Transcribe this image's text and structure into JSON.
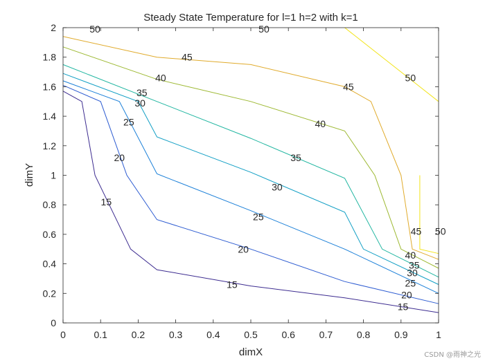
{
  "chart_data": {
    "type": "line",
    "subtype": "contour",
    "title": "Steady State Temperature for l=1 h=2 with k=1",
    "xlabel": "dimX",
    "ylabel": "dimY",
    "xlim": [
      0,
      1
    ],
    "ylim": [
      0,
      2
    ],
    "x_ticks": [
      0,
      0.1,
      0.2,
      0.3,
      0.4,
      0.5,
      0.6,
      0.7,
      0.8,
      0.9,
      1
    ],
    "x_tick_labels": [
      "0",
      "0.1",
      "0.2",
      "0.3",
      "0.4",
      "0.5",
      "0.6",
      "0.7",
      "0.8",
      "0.9",
      "1"
    ],
    "y_ticks": [
      0,
      0.2,
      0.4,
      0.6,
      0.8,
      1,
      1.2,
      1.4,
      1.6,
      1.8,
      2
    ],
    "y_tick_labels": [
      "0",
      "0.2",
      "0.4",
      "0.6",
      "0.8",
      "1",
      "1.2",
      "1.4",
      "1.6",
      "1.8",
      "2"
    ],
    "series": [
      {
        "name": "15",
        "level": 15,
        "color": "#3b2a8f",
        "points": [
          [
            0,
            1.57
          ],
          [
            0.05,
            1.5
          ],
          [
            0.085,
            1.0
          ],
          [
            0.18,
            0.5
          ],
          [
            0.25,
            0.36
          ],
          [
            0.5,
            0.25
          ],
          [
            0.75,
            0.17
          ],
          [
            1,
            0.07
          ]
        ],
        "labels": [
          {
            "text": "15",
            "x": 0.115,
            "y": 0.82
          },
          {
            "text": "15",
            "x": 0.45,
            "y": 0.26
          },
          {
            "text": "15",
            "x": 0.905,
            "y": 0.11
          }
        ]
      },
      {
        "name": "20",
        "level": 20,
        "color": "#2c5bd1",
        "points": [
          [
            0,
            1.61
          ],
          [
            0.1,
            1.5
          ],
          [
            0.17,
            1.0
          ],
          [
            0.25,
            0.7
          ],
          [
            0.5,
            0.5
          ],
          [
            0.75,
            0.28
          ],
          [
            1,
            0.13
          ]
        ],
        "labels": [
          {
            "text": "20",
            "x": 0.15,
            "y": 1.12
          },
          {
            "text": "20",
            "x": 0.48,
            "y": 0.5
          },
          {
            "text": "20",
            "x": 0.915,
            "y": 0.19
          }
        ]
      },
      {
        "name": "25",
        "level": 25,
        "color": "#1a7fd8",
        "points": [
          [
            0,
            1.64
          ],
          [
            0.15,
            1.5
          ],
          [
            0.25,
            1.01
          ],
          [
            0.5,
            0.76
          ],
          [
            0.75,
            0.5
          ],
          [
            1,
            0.2
          ]
        ],
        "labels": [
          {
            "text": "25",
            "x": 0.175,
            "y": 1.36
          },
          {
            "text": "25",
            "x": 0.52,
            "y": 0.72
          },
          {
            "text": "25",
            "x": 0.925,
            "y": 0.27
          }
        ]
      },
      {
        "name": "30",
        "level": 30,
        "color": "#0f9ec4",
        "points": [
          [
            0,
            1.69
          ],
          [
            0.2,
            1.5
          ],
          [
            0.25,
            1.26
          ],
          [
            0.5,
            1.02
          ],
          [
            0.75,
            0.75
          ],
          [
            0.8,
            0.5
          ],
          [
            1,
            0.26
          ]
        ],
        "labels": [
          {
            "text": "30",
            "x": 0.205,
            "y": 1.49
          },
          {
            "text": "30",
            "x": 0.57,
            "y": 0.92
          },
          {
            "text": "30",
            "x": 0.93,
            "y": 0.34
          }
        ]
      },
      {
        "name": "35",
        "level": 35,
        "color": "#1fb5a0",
        "points": [
          [
            0,
            1.75
          ],
          [
            0.25,
            1.5
          ],
          [
            0.5,
            1.25
          ],
          [
            0.75,
            0.98
          ],
          [
            0.85,
            0.5
          ],
          [
            1,
            0.31
          ]
        ],
        "labels": [
          {
            "text": "35",
            "x": 0.21,
            "y": 1.56
          },
          {
            "text": "35",
            "x": 0.62,
            "y": 1.12
          },
          {
            "text": "35",
            "x": 0.935,
            "y": 0.39
          }
        ]
      },
      {
        "name": "40",
        "level": 40,
        "color": "#9cb830",
        "points": [
          [
            0,
            1.87
          ],
          [
            0.25,
            1.65
          ],
          [
            0.5,
            1.5
          ],
          [
            0.75,
            1.3
          ],
          [
            0.83,
            1.0
          ],
          [
            0.9,
            0.5
          ],
          [
            1,
            0.37
          ]
        ],
        "labels": [
          {
            "text": "40",
            "x": 0.26,
            "y": 1.66
          },
          {
            "text": "40",
            "x": 0.685,
            "y": 1.35
          },
          {
            "text": "40",
            "x": 0.925,
            "y": 0.46
          }
        ]
      },
      {
        "name": "45",
        "level": 45,
        "color": "#e0aa2a",
        "points": [
          [
            0,
            1.94
          ],
          [
            0.25,
            1.8
          ],
          [
            0.5,
            1.75
          ],
          [
            0.75,
            1.6
          ],
          [
            0.82,
            1.5
          ],
          [
            0.9,
            1.0
          ],
          [
            0.93,
            0.5
          ],
          [
            1,
            0.43
          ]
        ],
        "labels": [
          {
            "text": "45",
            "x": 0.33,
            "y": 1.8
          },
          {
            "text": "45",
            "x": 0.76,
            "y": 1.6
          },
          {
            "text": "45",
            "x": 0.94,
            "y": 0.62
          }
        ]
      },
      {
        "name": "50",
        "level": 50,
        "color": "#f2e41a",
        "points": [
          [
            0.75,
            2.0
          ],
          [
            1,
            1.5
          ]
        ],
        "extra_points": [
          [
            0.95,
            1.0
          ],
          [
            0.95,
            0.5
          ],
          [
            1,
            0.47
          ]
        ],
        "labels": [
          {
            "text": "50",
            "x": 0.085,
            "y": 1.99
          },
          {
            "text": "50",
            "x": 0.535,
            "y": 1.99
          },
          {
            "text": "50",
            "x": 0.925,
            "y": 1.66
          },
          {
            "text": "50",
            "x": 1.005,
            "y": 0.62
          }
        ]
      }
    ]
  },
  "watermark": "CSDN @雨神之光"
}
